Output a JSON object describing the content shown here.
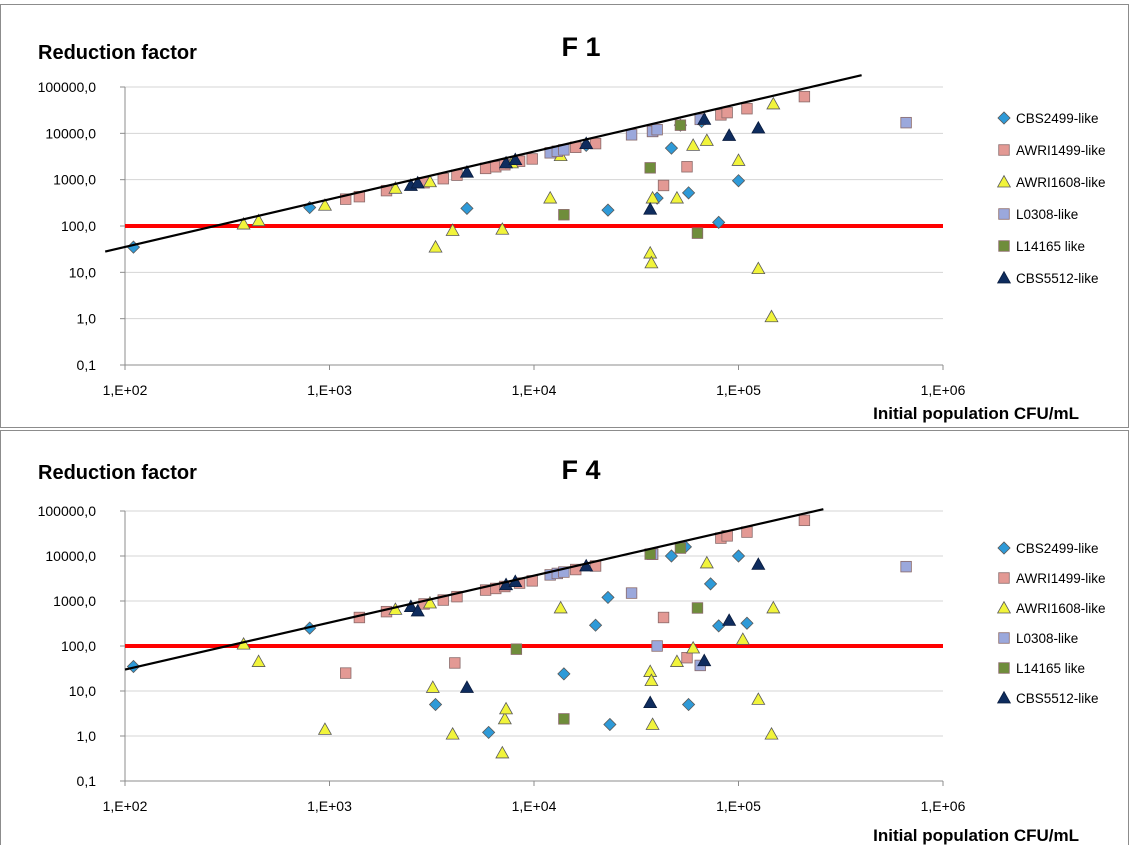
{
  "chart_data": [
    {
      "type": "scatter",
      "title": "F 1",
      "ylabel": "Reduction factor",
      "xlabel": "Initial population CFU/mL",
      "x_scale": "log",
      "y_scale": "log",
      "xlim": [
        100,
        1000000
      ],
      "ylim": [
        0.1,
        100000
      ],
      "x_tick_labels": [
        "1,E+02",
        "1,E+03",
        "1,E+04",
        "1,E+05",
        "1,E+06"
      ],
      "y_tick_labels": [
        "0,1",
        "1,0",
        "10,0",
        "100,0",
        "1000,0",
        "10000,0",
        "100000,0"
      ],
      "grid": true,
      "legend": "right",
      "threshold_line": {
        "y": 100,
        "color": "#ff0000"
      },
      "fit_line": {
        "x": [
          80,
          400000
        ],
        "y": [
          28,
          180000
        ],
        "color": "#000000"
      },
      "series": [
        {
          "name": "CBS2499-like",
          "marker": "diamond",
          "color": "#2e9ad8",
          "x": [
            110,
            800,
            4700,
            23000,
            40000,
            47000,
            57000,
            80000,
            100000,
            52000,
            66000,
            18000
          ],
          "y": [
            35,
            250,
            240,
            220,
            400,
            4800,
            520,
            120,
            950,
            15000,
            18000,
            5500
          ]
        },
        {
          "name": "AWRI1499-like",
          "marker": "square",
          "color": "#e39994",
          "x": [
            1200,
            1400,
            1900,
            2900,
            3600,
            4200,
            5800,
            6500,
            7200,
            8500,
            9800,
            16000,
            20000,
            38000,
            43000,
            56000,
            82000,
            88000,
            110000,
            210000
          ],
          "y": [
            380,
            430,
            580,
            860,
            1050,
            1250,
            1750,
            1900,
            2100,
            2500,
            2800,
            5000,
            6000,
            11000,
            750,
            1900,
            25000,
            28000,
            34000,
            62000
          ]
        },
        {
          "name": "AWRI1608-like",
          "marker": "triangle",
          "color": "#f1f43b",
          "x": [
            380,
            450,
            950,
            2100,
            3100,
            3300,
            4000,
            7000,
            7800,
            12000,
            13500,
            37000,
            37500,
            38000,
            50000,
            60000,
            70000,
            100000,
            125000,
            145000,
            148000
          ],
          "y": [
            110,
            130,
            280,
            650,
            900,
            35,
            80,
            85,
            2300,
            400,
            3300,
            26,
            16,
            400,
            400,
            5500,
            7000,
            2600,
            12,
            1.1,
            43000
          ]
        },
        {
          "name": "L0308-like",
          "marker": "square",
          "color": "#9ba8dc",
          "x": [
            12000,
            13000,
            14000,
            30000,
            38000,
            40000,
            65000,
            660000
          ],
          "y": [
            3800,
            4100,
            4400,
            9300,
            11000,
            12000,
            20000,
            17000
          ]
        },
        {
          "name": "L14165 like",
          "marker": "square",
          "color": "#6f8d3b",
          "x": [
            14000,
            37000,
            52000,
            63000
          ],
          "y": [
            175,
            1800,
            15000,
            70
          ]
        },
        {
          "name": "CBS5512-like",
          "marker": "triangle",
          "color": "#0e2c5e",
          "x": [
            2500,
            2700,
            4700,
            7300,
            8100,
            18000,
            37000,
            68000,
            90000,
            125000
          ],
          "y": [
            750,
            850,
            1450,
            2300,
            2700,
            6000,
            230,
            20000,
            9000,
            13000
          ]
        }
      ]
    },
    {
      "type": "scatter",
      "title": "F 4",
      "ylabel": "Reduction factor",
      "xlabel": "Initial population CFU/mL",
      "x_scale": "log",
      "y_scale": "log",
      "xlim": [
        100,
        1000000
      ],
      "ylim": [
        0.1,
        100000
      ],
      "x_tick_labels": [
        "1,E+02",
        "1,E+03",
        "1,E+04",
        "1,E+05",
        "1,E+06"
      ],
      "y_tick_labels": [
        "0,1",
        "1,0",
        "10,0",
        "100,0",
        "1000,0",
        "10000,0",
        "100000,0"
      ],
      "grid": true,
      "legend": "right",
      "threshold_line": {
        "y": 100,
        "color": "#ff0000"
      },
      "fit_line": {
        "x": [
          100,
          260000
        ],
        "y": [
          30,
          110000
        ],
        "color": "#000000"
      },
      "series": [
        {
          "name": "CBS2499-like",
          "marker": "diamond",
          "color": "#2e9ad8",
          "x": [
            110,
            800,
            3300,
            6000,
            14000,
            20000,
            23000,
            23500,
            47000,
            57000,
            73000,
            80000,
            100000,
            110000,
            55000
          ],
          "y": [
            35,
            250,
            5,
            1.2,
            24,
            290,
            1200,
            1.8,
            10000,
            5,
            2400,
            280,
            10000,
            320,
            16000
          ]
        },
        {
          "name": "AWRI1499-like",
          "marker": "square",
          "color": "#e39994",
          "x": [
            1200,
            1400,
            1900,
            2900,
            3600,
            4100,
            4200,
            5800,
            6500,
            7200,
            8500,
            9800,
            16000,
            20000,
            38000,
            43000,
            56000,
            82000,
            88000,
            110000,
            210000
          ],
          "y": [
            25,
            430,
            580,
            860,
            1050,
            42,
            1250,
            1750,
            1900,
            2100,
            2500,
            2800,
            5000,
            6000,
            11000,
            430,
            55,
            25000,
            28000,
            34000,
            62000
          ]
        },
        {
          "name": "AWRI1608-like",
          "marker": "triangle",
          "color": "#f1f43b",
          "x": [
            380,
            450,
            950,
            2100,
            3100,
            3200,
            4000,
            7000,
            7200,
            7300,
            13500,
            37000,
            37500,
            38000,
            50000,
            60000,
            70000,
            105000,
            125000,
            145000,
            148000
          ],
          "y": [
            110,
            45,
            1.4,
            650,
            900,
            12,
            1.1,
            0.42,
            2.4,
            4,
            700,
            27,
            17,
            1.8,
            45,
            90,
            7000,
            140,
            6.5,
            1.1,
            700
          ]
        },
        {
          "name": "L0308-like",
          "marker": "square",
          "color": "#9ba8dc",
          "x": [
            12000,
            13000,
            14000,
            30000,
            38000,
            40000,
            65000,
            660000
          ],
          "y": [
            3800,
            4100,
            4400,
            1500,
            11000,
            100,
            37,
            5800
          ]
        },
        {
          "name": "L14165 like",
          "marker": "square",
          "color": "#6f8d3b",
          "x": [
            8200,
            14000,
            37000,
            52000,
            63000
          ],
          "y": [
            85,
            2.4,
            11000,
            15000,
            700
          ]
        },
        {
          "name": "CBS5512-like",
          "marker": "triangle",
          "color": "#0e2c5e",
          "x": [
            2500,
            2700,
            4700,
            7300,
            8100,
            18000,
            37000,
            68000,
            90000,
            125000
          ],
          "y": [
            750,
            600,
            12,
            2300,
            2700,
            6000,
            5.5,
            47,
            370,
            6500
          ]
        }
      ]
    }
  ]
}
